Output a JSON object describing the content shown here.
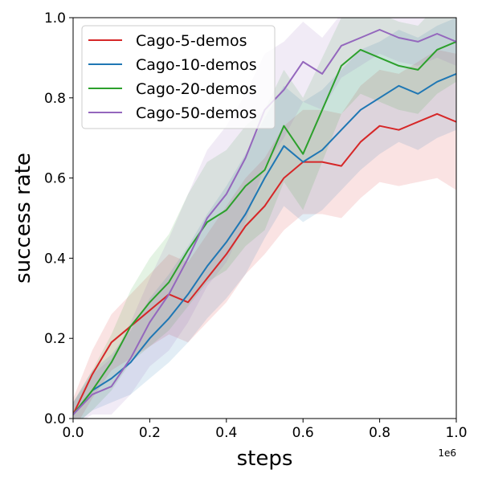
{
  "chart_data": {
    "type": "line",
    "xlabel": "steps",
    "ylabel": "success rate",
    "x_offset_label": "1e6",
    "xlim": [
      0,
      1.0
    ],
    "ylim": [
      0,
      1.0
    ],
    "xticks": [
      0.0,
      0.2,
      0.4,
      0.6,
      0.8,
      1.0
    ],
    "xtick_labels": [
      "0.0",
      "0.2",
      "0.4",
      "0.6",
      "0.8",
      "1.0"
    ],
    "yticks": [
      0.0,
      0.2,
      0.4,
      0.6,
      0.8,
      1.0
    ],
    "ytick_labels": [
      "0.0",
      "0.2",
      "0.4",
      "0.6",
      "0.8",
      "1.0"
    ],
    "legend_position": "top-left",
    "x": [
      0.0,
      0.05,
      0.1,
      0.15,
      0.2,
      0.25,
      0.3,
      0.35,
      0.4,
      0.45,
      0.5,
      0.55,
      0.6,
      0.65,
      0.7,
      0.75,
      0.8,
      0.85,
      0.9,
      0.95,
      1.0
    ],
    "series": [
      {
        "name": "Cago-5-demos",
        "color": "#d62728",
        "values": [
          0.01,
          0.11,
          0.19,
          0.23,
          0.27,
          0.31,
          0.29,
          0.35,
          0.41,
          0.48,
          0.53,
          0.6,
          0.64,
          0.64,
          0.63,
          0.69,
          0.73,
          0.72,
          0.74,
          0.76,
          0.74
        ],
        "band": [
          0.04,
          0.06,
          0.07,
          0.08,
          0.09,
          0.1,
          0.1,
          0.11,
          0.12,
          0.12,
          0.12,
          0.13,
          0.13,
          0.13,
          0.13,
          0.14,
          0.14,
          0.14,
          0.15,
          0.16,
          0.17
        ]
      },
      {
        "name": "Cago-10-demos",
        "color": "#1f77b4",
        "values": [
          0.01,
          0.07,
          0.1,
          0.14,
          0.2,
          0.25,
          0.31,
          0.38,
          0.44,
          0.51,
          0.6,
          0.68,
          0.64,
          0.67,
          0.72,
          0.77,
          0.8,
          0.83,
          0.81,
          0.84,
          0.86
        ],
        "band": [
          0.03,
          0.05,
          0.06,
          0.08,
          0.1,
          0.11,
          0.12,
          0.13,
          0.14,
          0.15,
          0.15,
          0.15,
          0.15,
          0.15,
          0.15,
          0.15,
          0.14,
          0.14,
          0.14,
          0.14,
          0.14
        ]
      },
      {
        "name": "Cago-20-demos",
        "color": "#2ca02c",
        "values": [
          0.01,
          0.07,
          0.14,
          0.23,
          0.29,
          0.34,
          0.42,
          0.49,
          0.52,
          0.58,
          0.62,
          0.73,
          0.66,
          0.77,
          0.88,
          0.92,
          0.9,
          0.88,
          0.87,
          0.92,
          0.94
        ],
        "band": [
          0.03,
          0.05,
          0.07,
          0.09,
          0.11,
          0.12,
          0.14,
          0.15,
          0.15,
          0.15,
          0.15,
          0.14,
          0.14,
          0.13,
          0.12,
          0.11,
          0.11,
          0.11,
          0.11,
          0.11,
          0.1
        ]
      },
      {
        "name": "Cago-50-demos",
        "color": "#9467bd",
        "values": [
          0.01,
          0.06,
          0.08,
          0.15,
          0.24,
          0.31,
          0.4,
          0.5,
          0.56,
          0.65,
          0.77,
          0.82,
          0.89,
          0.86,
          0.93,
          0.95,
          0.97,
          0.95,
          0.94,
          0.96,
          0.94
        ],
        "band": [
          0.03,
          0.05,
          0.07,
          0.09,
          0.11,
          0.14,
          0.16,
          0.17,
          0.17,
          0.16,
          0.14,
          0.12,
          0.1,
          0.09,
          0.08,
          0.07,
          0.06,
          0.06,
          0.06,
          0.06,
          0.06
        ]
      }
    ]
  }
}
